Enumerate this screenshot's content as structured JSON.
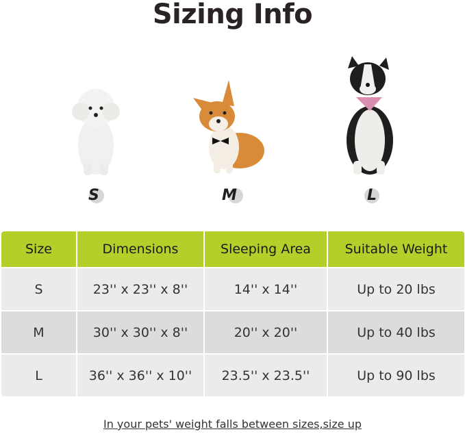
{
  "title": "Sizing Info",
  "sizes": [
    {
      "letter": "S",
      "icon": "poodle-dog-photo"
    },
    {
      "letter": "M",
      "icon": "corgi-dog-photo"
    },
    {
      "letter": "L",
      "icon": "border-collie-dog-photo"
    }
  ],
  "table": {
    "headers": [
      "Size",
      "Dimensions",
      "Sleeping Area",
      "Suitable Weight"
    ],
    "rows": [
      [
        "S",
        "23'' x 23'' x 8''",
        "14'' x 14''",
        "Up to 20 lbs"
      ],
      [
        "M",
        "30'' x 30'' x 8''",
        "20'' x 20''",
        "Up to 40 lbs"
      ],
      [
        "L",
        "36'' x 36'' x 10''",
        "23.5'' x 23.5''",
        "Up to 90 lbs"
      ]
    ]
  },
  "colors": {
    "header": "#b5cf2a",
    "row_light": "#ebebeb",
    "row_dark": "#dcdcdc"
  },
  "note": "In your pets' weight falls between sizes,size up"
}
